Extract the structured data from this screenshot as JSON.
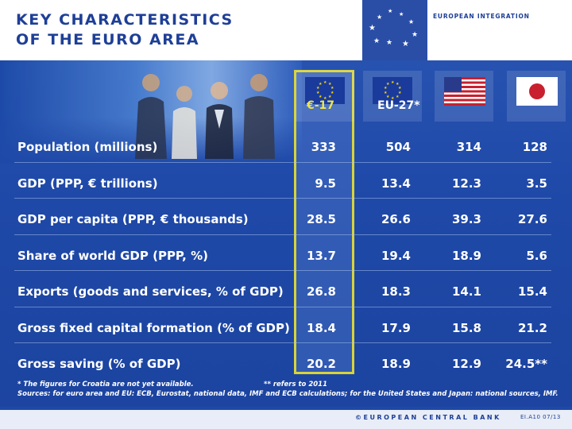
{
  "header": {
    "title_line1": "KEY CHARACTERISTICS",
    "title_line2": "OF THE EURO AREA",
    "label": "EUROPEAN INTEGRATION"
  },
  "columns": [
    {
      "label": "€-17",
      "flag": "eu-flag-icon"
    },
    {
      "label": "EU-27*",
      "flag": "eu-flag-icon"
    },
    {
      "label": "",
      "flag": "us-flag-icon"
    },
    {
      "label": "",
      "flag": "japan-flag-icon"
    }
  ],
  "rows": [
    {
      "label": "Population (millions)",
      "values": [
        "333",
        "504",
        "314",
        "128"
      ]
    },
    {
      "label": "GDP (PPP, € trillions)",
      "values": [
        "9.5",
        "13.4",
        "12.3",
        "3.5"
      ]
    },
    {
      "label": "GDP per capita (PPP, € thousands)",
      "values": [
        "28.5",
        "26.6",
        "39.3",
        "27.6"
      ]
    },
    {
      "label": "Share of world GDP (PPP, %)",
      "values": [
        "13.7",
        "19.4",
        "18.9",
        "5.6"
      ]
    },
    {
      "label": "Exports (goods and services, % of GDP)",
      "values": [
        "26.8",
        "18.3",
        "14.1",
        "15.4"
      ]
    },
    {
      "label": "Gross fixed capital formation (% of GDP)",
      "values": [
        "18.4",
        "17.9",
        "15.8",
        "21.2"
      ]
    },
    {
      "label": "Gross saving (% of GDP)",
      "values": [
        "20.2",
        "18.9",
        "12.9",
        "24.5**"
      ]
    }
  ],
  "notes": {
    "note1": "* The figures for Croatia are not yet available.",
    "note2": "** refers to 2011",
    "sources": "Sources: for euro area and EU: ECB, Eurostat, national data, IMF and ECB calculations; for the United States and Japan: national sources, IMF."
  },
  "footer": {
    "text": "©EUROPEAN CENTRAL BANK",
    "code": "EI.A10 07/13"
  },
  "colors": {
    "navy": "#1e3f97",
    "body_blue": "#1f49a8",
    "highlight": "#d8d33a"
  }
}
